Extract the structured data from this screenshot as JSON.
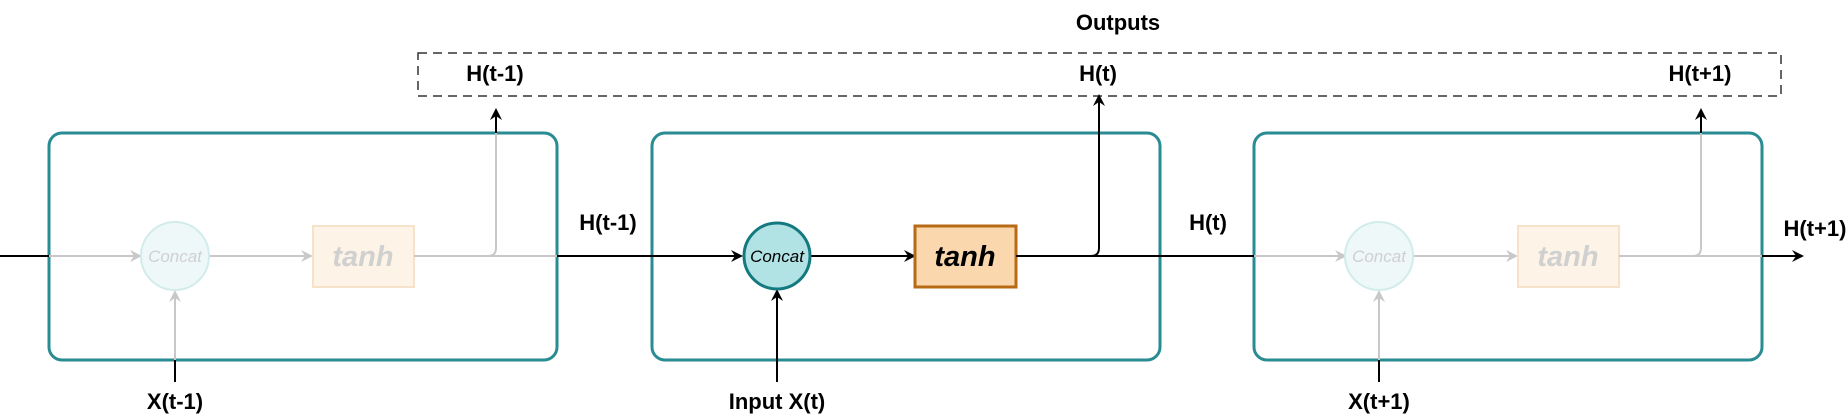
{
  "outputs_title": "Outputs",
  "outputs": [
    "H(t-1)",
    "H(t)",
    "H(t+1)"
  ],
  "hidden_labels": [
    "H(t-1)",
    "H(t)",
    "H(t+1)"
  ],
  "inputs": [
    "X(t-1)",
    "Input X(t)",
    "X(t+1)"
  ],
  "concat_label": "Concat",
  "activation_label": "tanh",
  "cells": [
    {
      "state": "faded"
    },
    {
      "state": "active"
    },
    {
      "state": "faded"
    }
  ],
  "colors": {
    "cell_border": "#2a8c93",
    "concat_fill_active": "#b1e2e4",
    "concat_stroke_active": "#147a80",
    "tanh_fill_active": "#fad7ac",
    "tanh_stroke_active": "#b86a14",
    "faded_line": "#c8c8c8",
    "faded_concat_fill": "#eef8f8",
    "faded_concat_stroke": "#d2ebeb",
    "faded_tanh_fill": "#fdf3e6",
    "faded_tanh_stroke": "#f6e2c8",
    "faded_text": "#d0d0d0"
  }
}
